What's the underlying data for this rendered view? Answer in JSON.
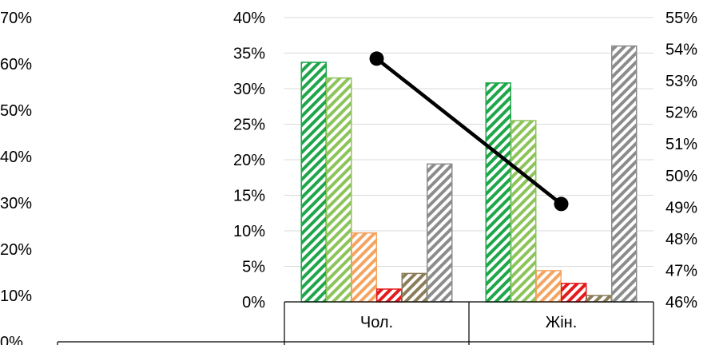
{
  "chart_data": {
    "type": "bar",
    "categories": [
      "Чол.",
      "Жін."
    ],
    "outer_axis": {
      "tick_labels": [
        "0%",
        "10%",
        "20%",
        "30%",
        "40%",
        "50%",
        "60%",
        "70%"
      ],
      "ylim": [
        0,
        70
      ]
    },
    "left_axis": {
      "tick_labels": [
        "0%",
        "5%",
        "10%",
        "15%",
        "20%",
        "25%",
        "30%",
        "35%",
        "40%"
      ],
      "ylim": [
        0,
        40
      ]
    },
    "right_axis": {
      "tick_labels": [
        "46%",
        "47%",
        "48%",
        "49%",
        "50%",
        "51%",
        "52%",
        "53%",
        "54%",
        "55%"
      ],
      "ylim": [
        46,
        55
      ]
    },
    "series": [
      {
        "values": [
          33.7,
          30.8
        ],
        "color": "#1fa64a",
        "pattern": "diagonal-stripes-dark"
      },
      {
        "values": [
          31.5,
          25.5
        ],
        "color": "#8cc45a",
        "pattern": "diagonal-stripes-light"
      },
      {
        "values": [
          9.7,
          4.4
        ],
        "color": "#f4a460",
        "pattern": "diagonal-stripes"
      },
      {
        "values": [
          1.8,
          2.6
        ],
        "color": "#e41a1c",
        "pattern": "diagonal-stripes"
      },
      {
        "values": [
          4.0,
          0.9
        ],
        "color": "#8b7d5a",
        "pattern": "diagonal-stripes"
      },
      {
        "values": [
          19.4,
          36.0
        ],
        "color": "#8c8c8c",
        "pattern": "diagonal-stripes"
      }
    ],
    "line_series": {
      "axis": "right",
      "values": [
        53.7,
        49.1
      ],
      "color": "#000000"
    },
    "grid": true,
    "legend": "none"
  }
}
